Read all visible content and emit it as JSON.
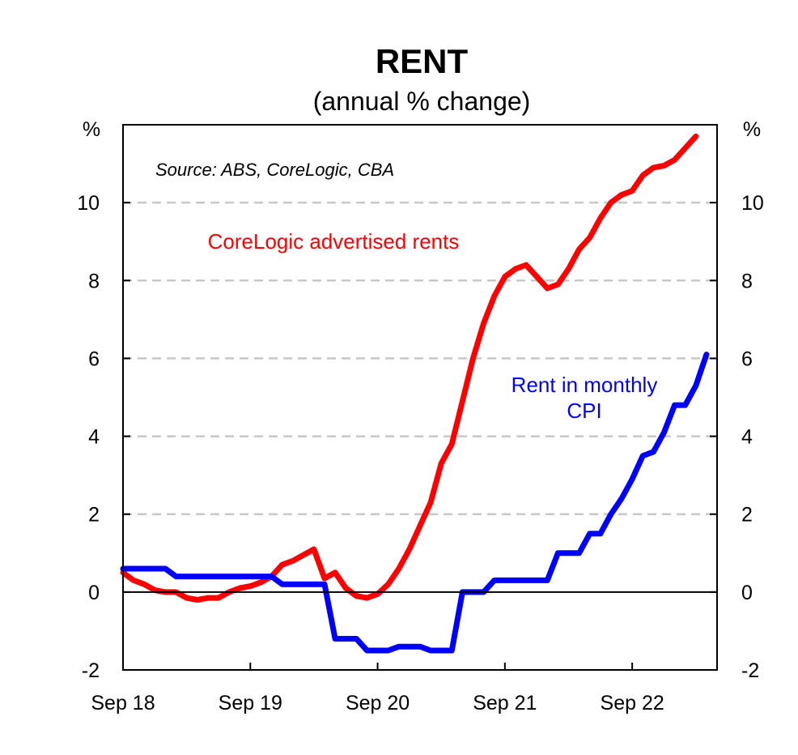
{
  "chart_data": {
    "type": "line",
    "title": "RENT",
    "subtitle": "(annual % change)",
    "y_unit_left": "%",
    "y_unit_right": "%",
    "source": "Source: ABS, CoreLogic, CBA",
    "ylim": [
      -2,
      12
    ],
    "y_ticks": [
      -2,
      0,
      2,
      4,
      6,
      8,
      10
    ],
    "y_tick_labels": [
      "-2",
      "0",
      "2",
      "4",
      "6",
      "8",
      "10"
    ],
    "x_range": [
      "2018-09",
      "2023-05"
    ],
    "x_ticks": [
      {
        "date": "2018-09",
        "label": "Sep 18"
      },
      {
        "date": "2019-09",
        "label": "Sep 19"
      },
      {
        "date": "2020-09",
        "label": "Sep 20"
      },
      {
        "date": "2021-09",
        "label": "Sep 21"
      },
      {
        "date": "2022-09",
        "label": "Sep 22"
      }
    ],
    "grid": "horizontal dashed",
    "series": [
      {
        "name": "CoreLogic advertised rents",
        "label_lines": [
          "CoreLogic advertised rents"
        ],
        "color": "#ff0000",
        "points": [
          [
            "2018-09",
            0.5
          ],
          [
            "2018-10",
            0.3
          ],
          [
            "2018-11",
            0.2
          ],
          [
            "2018-12",
            0.05
          ],
          [
            "2019-01",
            0.0
          ],
          [
            "2019-02",
            0.0
          ],
          [
            "2019-03",
            -0.15
          ],
          [
            "2019-04",
            -0.2
          ],
          [
            "2019-05",
            -0.15
          ],
          [
            "2019-06",
            -0.15
          ],
          [
            "2019-07",
            0.0
          ],
          [
            "2019-08",
            0.1
          ],
          [
            "2019-09",
            0.15
          ],
          [
            "2019-10",
            0.25
          ],
          [
            "2019-11",
            0.4
          ],
          [
            "2019-12",
            0.7
          ],
          [
            "2020-01",
            0.8
          ],
          [
            "2020-02",
            0.95
          ],
          [
            "2020-03",
            1.1
          ],
          [
            "2020-04",
            0.35
          ],
          [
            "2020-05",
            0.5
          ],
          [
            "2020-06",
            0.1
          ],
          [
            "2020-07",
            -0.1
          ],
          [
            "2020-08",
            -0.15
          ],
          [
            "2020-09",
            -0.05
          ],
          [
            "2020-10",
            0.2
          ],
          [
            "2020-11",
            0.6
          ],
          [
            "2020-12",
            1.1
          ],
          [
            "2021-01",
            1.7
          ],
          [
            "2021-02",
            2.3
          ],
          [
            "2021-03",
            3.3
          ],
          [
            "2021-04",
            3.8
          ],
          [
            "2021-05",
            4.9
          ],
          [
            "2021-06",
            6.0
          ],
          [
            "2021-07",
            6.9
          ],
          [
            "2021-08",
            7.6
          ],
          [
            "2021-09",
            8.1
          ],
          [
            "2021-10",
            8.3
          ],
          [
            "2021-11",
            8.4
          ],
          [
            "2021-12",
            8.1
          ],
          [
            "2022-01",
            7.8
          ],
          [
            "2022-02",
            7.9
          ],
          [
            "2022-03",
            8.3
          ],
          [
            "2022-04",
            8.8
          ],
          [
            "2022-05",
            9.1
          ],
          [
            "2022-06",
            9.6
          ],
          [
            "2022-07",
            10.0
          ],
          [
            "2022-08",
            10.2
          ],
          [
            "2022-09",
            10.3
          ],
          [
            "2022-10",
            10.7
          ],
          [
            "2022-11",
            10.9
          ],
          [
            "2022-12",
            10.95
          ],
          [
            "2023-01",
            11.1
          ],
          [
            "2023-02",
            11.4
          ],
          [
            "2023-03",
            11.7
          ]
        ]
      },
      {
        "name": "Rent in monthly CPI",
        "label_lines": [
          "Rent in monthly",
          "CPI"
        ],
        "color": "#0000ff",
        "points": [
          [
            "2018-09",
            0.6
          ],
          [
            "2018-10",
            0.6
          ],
          [
            "2018-11",
            0.6
          ],
          [
            "2018-12",
            0.6
          ],
          [
            "2019-01",
            0.6
          ],
          [
            "2019-02",
            0.4
          ],
          [
            "2019-03",
            0.4
          ],
          [
            "2019-04",
            0.4
          ],
          [
            "2019-05",
            0.4
          ],
          [
            "2019-06",
            0.4
          ],
          [
            "2019-07",
            0.4
          ],
          [
            "2019-08",
            0.4
          ],
          [
            "2019-09",
            0.4
          ],
          [
            "2019-10",
            0.4
          ],
          [
            "2019-11",
            0.4
          ],
          [
            "2019-12",
            0.2
          ],
          [
            "2020-01",
            0.2
          ],
          [
            "2020-02",
            0.2
          ],
          [
            "2020-03",
            0.2
          ],
          [
            "2020-04",
            0.2
          ],
          [
            "2020-05",
            -1.2
          ],
          [
            "2020-06",
            -1.2
          ],
          [
            "2020-07",
            -1.2
          ],
          [
            "2020-08",
            -1.5
          ],
          [
            "2020-09",
            -1.5
          ],
          [
            "2020-10",
            -1.5
          ],
          [
            "2020-11",
            -1.4
          ],
          [
            "2020-12",
            -1.4
          ],
          [
            "2021-01",
            -1.4
          ],
          [
            "2021-02",
            -1.5
          ],
          [
            "2021-03",
            -1.5
          ],
          [
            "2021-04",
            -1.5
          ],
          [
            "2021-05",
            0.0
          ],
          [
            "2021-06",
            0.0
          ],
          [
            "2021-07",
            0.0
          ],
          [
            "2021-08",
            0.3
          ],
          [
            "2021-09",
            0.3
          ],
          [
            "2021-10",
            0.3
          ],
          [
            "2021-11",
            0.3
          ],
          [
            "2021-12",
            0.3
          ],
          [
            "2022-01",
            0.3
          ],
          [
            "2022-02",
            1.0
          ],
          [
            "2022-03",
            1.0
          ],
          [
            "2022-04",
            1.0
          ],
          [
            "2022-05",
            1.5
          ],
          [
            "2022-06",
            1.5
          ],
          [
            "2022-07",
            2.0
          ],
          [
            "2022-08",
            2.4
          ],
          [
            "2022-09",
            2.9
          ],
          [
            "2022-10",
            3.5
          ],
          [
            "2022-11",
            3.6
          ],
          [
            "2022-12",
            4.1
          ],
          [
            "2023-01",
            4.8
          ],
          [
            "2023-02",
            4.8
          ],
          [
            "2023-03",
            5.3
          ],
          [
            "2023-04",
            6.1
          ]
        ]
      }
    ]
  }
}
